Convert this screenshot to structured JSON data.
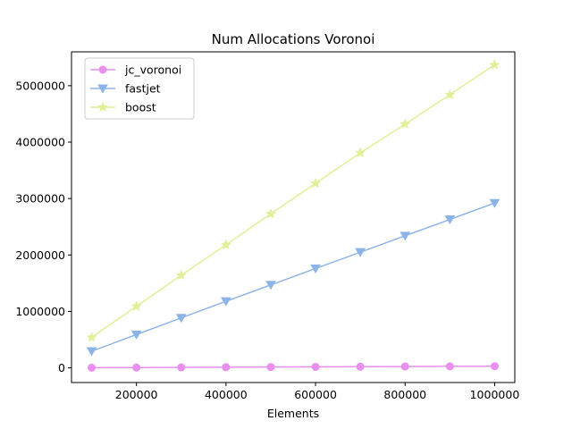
{
  "chart_data": {
    "type": "line",
    "title": "Num Allocations Voronoi",
    "xlabel": "Elements",
    "ylabel": "",
    "x": [
      100000,
      200000,
      300000,
      400000,
      500000,
      600000,
      700000,
      800000,
      900000,
      1000000
    ],
    "xlim": [
      55000,
      1045000
    ],
    "ylim": [
      -260000,
      5600000
    ],
    "xticks": [
      200000,
      400000,
      600000,
      800000,
      1000000
    ],
    "xtick_labels": [
      "200000",
      "400000",
      "600000",
      "800000",
      "1000000"
    ],
    "yticks": [
      0,
      1000000,
      2000000,
      3000000,
      4000000,
      5000000
    ],
    "ytick_labels": [
      "0",
      "1000000",
      "2000000",
      "3000000",
      "4000000",
      "5000000"
    ],
    "grid": false,
    "legend_position": "top-left",
    "series": [
      {
        "name": "jc_voronoi",
        "color": "#e88ff0",
        "marker": "circle",
        "values": [
          3000,
          6000,
          9000,
          12000,
          15000,
          18000,
          21000,
          24000,
          27000,
          30000
        ]
      },
      {
        "name": "fastjet",
        "color": "#8db4e8",
        "marker": "triangle-down",
        "values": [
          295000,
          590000,
          885000,
          1180000,
          1470000,
          1760000,
          2050000,
          2340000,
          2630000,
          2920000
        ]
      },
      {
        "name": "boost",
        "color": "#e3ee99",
        "marker": "star",
        "values": [
          540000,
          1090000,
          1640000,
          2180000,
          2730000,
          3270000,
          3810000,
          4320000,
          4840000,
          5370000
        ]
      }
    ]
  }
}
